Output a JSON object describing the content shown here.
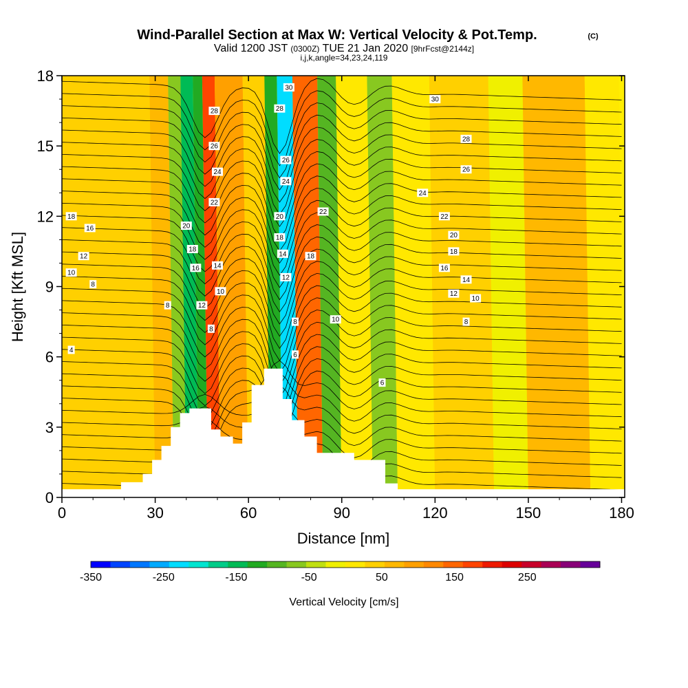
{
  "title": {
    "main": "Wind-Parallel Section at Max W: Vertical Velocity & Pot.Temp.",
    "copyright": "(C)",
    "valid_prefix": "Valid 1200 JST",
    "valid_utc": "(0300Z)",
    "valid_date": "TUE 21 Jan 2020",
    "forecast": "[9hrFcst@2144z]",
    "indices": "i,j,k,angle=34,23,24,119"
  },
  "colors": {
    "terrain": "#ffffff",
    "axis": "#000000",
    "contour": "#000000"
  },
  "chart_data": {
    "type": "heatmap",
    "xlabel": "Distance [nm]",
    "ylabel": "Height [Kft MSL]",
    "xlim": [
      0,
      181
    ],
    "ylim": [
      0,
      18
    ],
    "xticks": [
      0,
      30,
      60,
      90,
      120,
      150,
      180
    ],
    "yticks": [
      0,
      3,
      6,
      9,
      12,
      15,
      18
    ],
    "colorbar": {
      "label": "Vertical Velocity [cm/s]",
      "range": [
        -350,
        350
      ],
      "tick_values": [
        -350,
        -250,
        -150,
        -50,
        50,
        150,
        250
      ],
      "colors": [
        "#0000ff",
        "#0044ff",
        "#0077ff",
        "#00aaff",
        "#00ddff",
        "#00e5d0",
        "#00cc88",
        "#00bb55",
        "#22aa22",
        "#55b522",
        "#88c820",
        "#c0e010",
        "#f0f000",
        "#ffe800",
        "#ffd000",
        "#ffb800",
        "#ffa000",
        "#ff8800",
        "#ff6600",
        "#ff4400",
        "#ee1a00",
        "#dd0000",
        "#c8002a",
        "#aa0055",
        "#880077",
        "#660099"
      ]
    },
    "velocity_bands": [
      {
        "x": 0,
        "value": 40
      },
      {
        "x": 30,
        "value": 60
      },
      {
        "x": 36,
        "value": -60
      },
      {
        "x": 40,
        "value": -140
      },
      {
        "x": 44,
        "value": -120
      },
      {
        "x": 47,
        "value": 170
      },
      {
        "x": 51,
        "value": 90
      },
      {
        "x": 60,
        "value": 40
      },
      {
        "x": 67,
        "value": -130
      },
      {
        "x": 71,
        "value": -240
      },
      {
        "x": 76,
        "value": 150
      },
      {
        "x": 84,
        "value": -90
      },
      {
        "x": 90,
        "value": 20
      },
      {
        "x": 100,
        "value": -60
      },
      {
        "x": 108,
        "value": 20
      },
      {
        "x": 120,
        "value": 45
      },
      {
        "x": 139,
        "value": -20
      },
      {
        "x": 150,
        "value": 60
      },
      {
        "x": 170,
        "value": 20
      }
    ],
    "terrain_profile": [
      [
        0,
        0.35
      ],
      [
        19,
        0.35
      ],
      [
        19,
        0.65
      ],
      [
        26,
        0.65
      ],
      [
        26,
        1.0
      ],
      [
        29,
        1.0
      ],
      [
        29,
        1.6
      ],
      [
        32,
        1.6
      ],
      [
        32,
        2.2
      ],
      [
        35,
        2.2
      ],
      [
        35,
        3.0
      ],
      [
        38,
        3.0
      ],
      [
        38,
        3.6
      ],
      [
        41,
        3.6
      ],
      [
        41,
        3.8
      ],
      [
        48,
        3.8
      ],
      [
        48,
        2.9
      ],
      [
        51,
        2.9
      ],
      [
        51,
        2.6
      ],
      [
        55,
        2.6
      ],
      [
        55,
        2.3
      ],
      [
        58,
        2.3
      ],
      [
        58,
        3.2
      ],
      [
        61,
        3.2
      ],
      [
        61,
        4.8
      ],
      [
        65,
        4.8
      ],
      [
        65,
        5.5
      ],
      [
        71,
        5.5
      ],
      [
        71,
        4.2
      ],
      [
        74,
        4.2
      ],
      [
        74,
        3.3
      ],
      [
        78,
        3.3
      ],
      [
        78,
        2.6
      ],
      [
        82,
        2.6
      ],
      [
        82,
        1.9
      ],
      [
        86,
        1.9
      ],
      [
        86,
        1.9
      ],
      [
        94,
        1.9
      ],
      [
        94,
        1.6
      ],
      [
        104,
        1.6
      ],
      [
        104,
        0.6
      ],
      [
        108,
        0.6
      ],
      [
        108,
        0.35
      ],
      [
        181,
        0.35
      ]
    ],
    "contour_labels": [
      {
        "text": "30",
        "x": 73,
        "y": 17.5
      },
      {
        "text": "30",
        "x": 120,
        "y": 17.0
      },
      {
        "text": "28",
        "x": 49,
        "y": 16.5
      },
      {
        "text": "28",
        "x": 70,
        "y": 16.6
      },
      {
        "text": "28",
        "x": 130,
        "y": 15.3
      },
      {
        "text": "26",
        "x": 49,
        "y": 15.0
      },
      {
        "text": "26",
        "x": 72,
        "y": 14.4
      },
      {
        "text": "26",
        "x": 130,
        "y": 14.0
      },
      {
        "text": "24",
        "x": 50,
        "y": 13.9
      },
      {
        "text": "24",
        "x": 72,
        "y": 13.5
      },
      {
        "text": "24",
        "x": 116,
        "y": 13.0
      },
      {
        "text": "22",
        "x": 49,
        "y": 12.6
      },
      {
        "text": "22",
        "x": 84,
        "y": 12.2
      },
      {
        "text": "22",
        "x": 123,
        "y": 12.0
      },
      {
        "text": "20",
        "x": 40,
        "y": 11.6
      },
      {
        "text": "20",
        "x": 70,
        "y": 12.0
      },
      {
        "text": "20",
        "x": 126,
        "y": 11.2
      },
      {
        "text": "18",
        "x": 3,
        "y": 12.0
      },
      {
        "text": "18",
        "x": 42,
        "y": 10.6
      },
      {
        "text": "18",
        "x": 70,
        "y": 11.1
      },
      {
        "text": "18",
        "x": 80,
        "y": 10.3
      },
      {
        "text": "18",
        "x": 126,
        "y": 10.5
      },
      {
        "text": "16",
        "x": 9,
        "y": 11.5
      },
      {
        "text": "16",
        "x": 43,
        "y": 9.8
      },
      {
        "text": "16",
        "x": 123,
        "y": 9.8
      },
      {
        "text": "14",
        "x": 50,
        "y": 9.9
      },
      {
        "text": "14",
        "x": 71,
        "y": 10.4
      },
      {
        "text": "14",
        "x": 130,
        "y": 9.3
      },
      {
        "text": "12",
        "x": 7,
        "y": 10.3
      },
      {
        "text": "12",
        "x": 45,
        "y": 8.2
      },
      {
        "text": "12",
        "x": 72,
        "y": 9.4
      },
      {
        "text": "12",
        "x": 126,
        "y": 8.7
      },
      {
        "text": "10",
        "x": 3,
        "y": 9.6
      },
      {
        "text": "10",
        "x": 51,
        "y": 8.8
      },
      {
        "text": "10",
        "x": 88,
        "y": 7.6
      },
      {
        "text": "10",
        "x": 133,
        "y": 8.5
      },
      {
        "text": "8",
        "x": 10,
        "y": 9.1
      },
      {
        "text": "8",
        "x": 34,
        "y": 8.2
      },
      {
        "text": "8",
        "x": 48,
        "y": 7.2
      },
      {
        "text": "8",
        "x": 75,
        "y": 7.5
      },
      {
        "text": "8",
        "x": 130,
        "y": 7.5
      },
      {
        "text": "6",
        "x": 75,
        "y": 6.1
      },
      {
        "text": "6",
        "x": 103,
        "y": 4.9
      },
      {
        "text": "4",
        "x": 3,
        "y": 6.3
      }
    ]
  }
}
